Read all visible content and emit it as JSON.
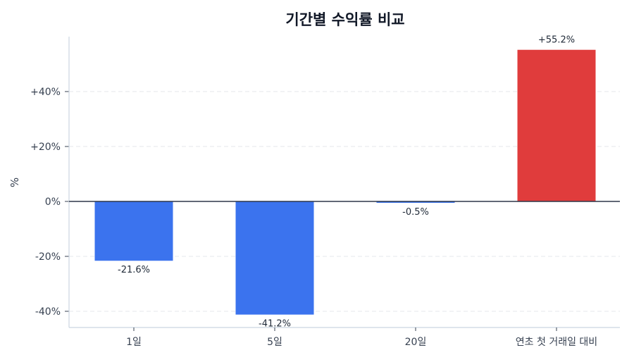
{
  "chart_data": {
    "type": "bar",
    "title": "기간별 수익률 비교",
    "xlabel": "",
    "ylabel": "%",
    "categories": [
      "1일",
      "5일",
      "20일",
      "연초 첫 거래일 대비"
    ],
    "values": [
      -21.6,
      -41.2,
      -0.5,
      55.2
    ],
    "value_labels": [
      "-21.6%",
      "-41.2%",
      "-0.5%",
      "+55.2%"
    ],
    "colors": [
      "#3b73ee",
      "#3b73ee",
      "#3b73ee",
      "#e03c3c"
    ],
    "ylim": [
      -46,
      60
    ],
    "yticks": [
      -40,
      -20,
      0,
      20,
      40
    ],
    "ytick_labels": [
      "-40%",
      "-20%",
      "0%",
      "+20%",
      "+40%"
    ],
    "grid": "horizontal dashed",
    "legend": "none"
  },
  "colors": {
    "negative": "#3b73ee",
    "positive": "#e03c3c",
    "zero_line": "#2d3748",
    "grid": "#e5e7eb",
    "axis": "#cbd5e1"
  }
}
